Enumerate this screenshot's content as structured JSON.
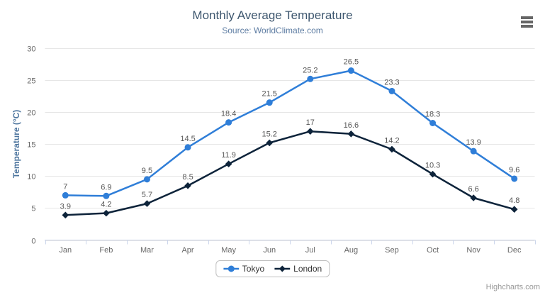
{
  "chart_data": {
    "type": "line",
    "title": "Monthly Average Temperature",
    "subtitle": "Source: WorldClimate.com",
    "categories": [
      "Jan",
      "Feb",
      "Mar",
      "Apr",
      "May",
      "Jun",
      "Jul",
      "Aug",
      "Sep",
      "Oct",
      "Nov",
      "Dec"
    ],
    "xlabel": "",
    "ylabel": "Temperature (°C)",
    "ylim": [
      0,
      30
    ],
    "yticks": [
      0,
      5,
      10,
      15,
      20,
      25,
      30
    ],
    "grid": true,
    "data_labels": true,
    "legend_position": "bottom-center",
    "series": [
      {
        "name": "Tokyo",
        "marker": "circle",
        "color": "#2f7ed8",
        "values": [
          7,
          6.9,
          9.5,
          14.5,
          18.4,
          21.5,
          25.2,
          26.5,
          23.3,
          18.3,
          13.9,
          9.6
        ]
      },
      {
        "name": "London",
        "marker": "diamond",
        "color": "#0d233a",
        "values": [
          3.9,
          4.2,
          5.7,
          8.5,
          11.9,
          15.2,
          17,
          16.6,
          14.2,
          10.3,
          6.6,
          4.8
        ]
      }
    ]
  },
  "credits": "Highcharts.com",
  "menu": {
    "icon": "hamburger-menu-icon"
  },
  "colors": {
    "background": "#ffffff",
    "title": "#3e576f",
    "subtitle": "#5d7ca2",
    "axis_line": "#ccd6eb",
    "gridline": "#e6e6e6",
    "axis_label": "#666666",
    "yaxis_title": "#4d759e",
    "data_label": "#555555",
    "legend_text": "#333333",
    "legend_border": "#c0c0c0",
    "credits": "#999999",
    "menu_icon": "#666666"
  }
}
